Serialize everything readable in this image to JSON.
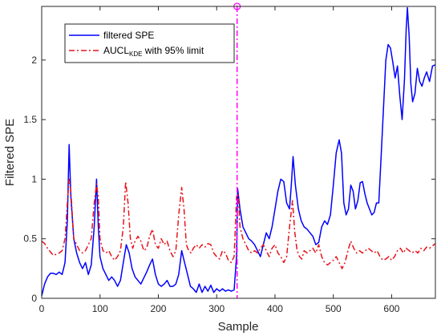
{
  "chart_data": {
    "type": "line",
    "xlabel": "Sample",
    "ylabel": "Filtered SPE",
    "xlim": [
      0,
      675
    ],
    "ylim": [
      0,
      2.45
    ],
    "xticks": [
      0,
      100,
      200,
      300,
      400,
      500,
      600
    ],
    "yticks": [
      0,
      0.5,
      1,
      1.5,
      2
    ],
    "ytick_labels": [
      "0",
      "0.5",
      "1",
      "1.5",
      "2"
    ],
    "grid": false,
    "legend": {
      "placement": "top-left",
      "entries": [
        {
          "main": "filtered SPE",
          "sub": "",
          "suffix": ""
        },
        {
          "main": "AUCL",
          "sub": "KDE",
          "suffix": " with 95% limit"
        }
      ]
    },
    "fault_marker": {
      "x": 335,
      "marker_y": 2.45,
      "color": "#ff00ff"
    },
    "series": [
      {
        "name": "filtered SPE",
        "color": "#0000ff",
        "style": "solid",
        "points": [
          [
            0,
            0.02
          ],
          [
            5,
            0.12
          ],
          [
            10,
            0.18
          ],
          [
            15,
            0.21
          ],
          [
            20,
            0.21
          ],
          [
            25,
            0.2
          ],
          [
            30,
            0.22
          ],
          [
            35,
            0.2
          ],
          [
            40,
            0.3
          ],
          [
            44,
            0.65
          ],
          [
            47,
            1.29
          ],
          [
            50,
            0.85
          ],
          [
            55,
            0.5
          ],
          [
            60,
            0.38
          ],
          [
            65,
            0.3
          ],
          [
            70,
            0.25
          ],
          [
            75,
            0.3
          ],
          [
            80,
            0.2
          ],
          [
            85,
            0.28
          ],
          [
            90,
            0.6
          ],
          [
            94,
            1.0
          ],
          [
            97,
            0.6
          ],
          [
            100,
            0.35
          ],
          [
            105,
            0.25
          ],
          [
            110,
            0.2
          ],
          [
            115,
            0.15
          ],
          [
            120,
            0.18
          ],
          [
            125,
            0.15
          ],
          [
            130,
            0.1
          ],
          [
            135,
            0.15
          ],
          [
            140,
            0.3
          ],
          [
            145,
            0.45
          ],
          [
            150,
            0.38
          ],
          [
            155,
            0.25
          ],
          [
            160,
            0.18
          ],
          [
            165,
            0.15
          ],
          [
            170,
            0.12
          ],
          [
            175,
            0.17
          ],
          [
            180,
            0.22
          ],
          [
            185,
            0.28
          ],
          [
            190,
            0.33
          ],
          [
            195,
            0.2
          ],
          [
            200,
            0.12
          ],
          [
            205,
            0.1
          ],
          [
            210,
            0.12
          ],
          [
            215,
            0.15
          ],
          [
            220,
            0.1
          ],
          [
            225,
            0.1
          ],
          [
            230,
            0.12
          ],
          [
            235,
            0.2
          ],
          [
            240,
            0.4
          ],
          [
            245,
            0.3
          ],
          [
            250,
            0.2
          ],
          [
            255,
            0.1
          ],
          [
            260,
            0.08
          ],
          [
            265,
            0.05
          ],
          [
            270,
            0.12
          ],
          [
            275,
            0.05
          ],
          [
            280,
            0.1
          ],
          [
            285,
            0.06
          ],
          [
            290,
            0.11
          ],
          [
            295,
            0.05
          ],
          [
            300,
            0.08
          ],
          [
            305,
            0.06
          ],
          [
            310,
            0.08
          ],
          [
            315,
            0.06
          ],
          [
            320,
            0.07
          ],
          [
            325,
            0.06
          ],
          [
            330,
            0.07
          ],
          [
            334,
            0.35
          ],
          [
            336,
            0.92
          ],
          [
            340,
            0.75
          ],
          [
            345,
            0.6
          ],
          [
            350,
            0.55
          ],
          [
            355,
            0.5
          ],
          [
            360,
            0.48
          ],
          [
            365,
            0.45
          ],
          [
            370,
            0.4
          ],
          [
            375,
            0.35
          ],
          [
            380,
            0.45
          ],
          [
            385,
            0.55
          ],
          [
            390,
            0.5
          ],
          [
            395,
            0.6
          ],
          [
            400,
            0.75
          ],
          [
            405,
            0.9
          ],
          [
            410,
            1.0
          ],
          [
            415,
            0.98
          ],
          [
            420,
            0.8
          ],
          [
            425,
            0.75
          ],
          [
            428,
            0.95
          ],
          [
            431,
            1.19
          ],
          [
            435,
            0.95
          ],
          [
            440,
            0.75
          ],
          [
            445,
            0.65
          ],
          [
            450,
            0.6
          ],
          [
            455,
            0.58
          ],
          [
            460,
            0.55
          ],
          [
            465,
            0.52
          ],
          [
            470,
            0.45
          ],
          [
            475,
            0.47
          ],
          [
            480,
            0.6
          ],
          [
            485,
            0.65
          ],
          [
            490,
            0.62
          ],
          [
            495,
            0.7
          ],
          [
            500,
            0.95
          ],
          [
            505,
            1.22
          ],
          [
            510,
            1.33
          ],
          [
            514,
            1.22
          ],
          [
            518,
            0.8
          ],
          [
            522,
            0.7
          ],
          [
            526,
            0.75
          ],
          [
            530,
            0.95
          ],
          [
            534,
            0.9
          ],
          [
            538,
            0.75
          ],
          [
            542,
            0.82
          ],
          [
            546,
            0.97
          ],
          [
            550,
            0.98
          ],
          [
            554,
            0.88
          ],
          [
            558,
            0.8
          ],
          [
            562,
            0.75
          ],
          [
            566,
            0.7
          ],
          [
            570,
            0.72
          ],
          [
            574,
            0.8
          ],
          [
            578,
            0.8
          ],
          [
            582,
            1.2
          ],
          [
            586,
            1.6
          ],
          [
            590,
            2.0
          ],
          [
            594,
            2.13
          ],
          [
            598,
            2.1
          ],
          [
            602,
            1.98
          ],
          [
            606,
            1.85
          ],
          [
            610,
            1.95
          ],
          [
            614,
            1.7
          ],
          [
            618,
            1.5
          ],
          [
            622,
            1.83
          ],
          [
            625,
            2.26
          ],
          [
            627,
            2.44
          ],
          [
            630,
            2.2
          ],
          [
            633,
            1.8
          ],
          [
            636,
            1.65
          ],
          [
            640,
            1.72
          ],
          [
            644,
            1.93
          ],
          [
            648,
            1.82
          ],
          [
            652,
            1.78
          ],
          [
            656,
            1.85
          ],
          [
            660,
            1.9
          ],
          [
            665,
            1.82
          ],
          [
            670,
            1.95
          ],
          [
            675,
            1.96
          ]
        ]
      },
      {
        "name": "AUCL_KDE with 95% limit",
        "color": "#e8141c",
        "style": "dashdot",
        "points": [
          [
            0,
            0.48
          ],
          [
            5,
            0.46
          ],
          [
            10,
            0.42
          ],
          [
            15,
            0.39
          ],
          [
            20,
            0.36
          ],
          [
            25,
            0.37
          ],
          [
            30,
            0.38
          ],
          [
            35,
            0.4
          ],
          [
            40,
            0.5
          ],
          [
            44,
            0.8
          ],
          [
            47,
            1.0
          ],
          [
            50,
            0.9
          ],
          [
            55,
            0.5
          ],
          [
            60,
            0.45
          ],
          [
            65,
            0.4
          ],
          [
            70,
            0.38
          ],
          [
            75,
            0.4
          ],
          [
            80,
            0.45
          ],
          [
            85,
            0.5
          ],
          [
            90,
            0.8
          ],
          [
            94,
            0.96
          ],
          [
            97,
            0.85
          ],
          [
            100,
            0.5
          ],
          [
            105,
            0.4
          ],
          [
            110,
            0.38
          ],
          [
            115,
            0.4
          ],
          [
            120,
            0.35
          ],
          [
            125,
            0.32
          ],
          [
            130,
            0.35
          ],
          [
            135,
            0.4
          ],
          [
            140,
            0.6
          ],
          [
            144,
            0.98
          ],
          [
            148,
            0.8
          ],
          [
            152,
            0.5
          ],
          [
            156,
            0.42
          ],
          [
            160,
            0.48
          ],
          [
            165,
            0.52
          ],
          [
            170,
            0.48
          ],
          [
            175,
            0.4
          ],
          [
            180,
            0.42
          ],
          [
            185,
            0.52
          ],
          [
            190,
            0.58
          ],
          [
            195,
            0.45
          ],
          [
            200,
            0.42
          ],
          [
            205,
            0.5
          ],
          [
            210,
            0.45
          ],
          [
            215,
            0.48
          ],
          [
            220,
            0.4
          ],
          [
            225,
            0.35
          ],
          [
            230,
            0.4
          ],
          [
            235,
            0.7
          ],
          [
            240,
            0.93
          ],
          [
            244,
            0.75
          ],
          [
            248,
            0.45
          ],
          [
            252,
            0.4
          ],
          [
            256,
            0.38
          ],
          [
            260,
            0.42
          ],
          [
            265,
            0.45
          ],
          [
            270,
            0.42
          ],
          [
            275,
            0.45
          ],
          [
            280,
            0.43
          ],
          [
            285,
            0.46
          ],
          [
            290,
            0.45
          ],
          [
            295,
            0.38
          ],
          [
            300,
            0.35
          ],
          [
            305,
            0.33
          ],
          [
            310,
            0.4
          ],
          [
            315,
            0.38
          ],
          [
            320,
            0.32
          ],
          [
            325,
            0.3
          ],
          [
            330,
            0.35
          ],
          [
            334,
            0.85
          ],
          [
            337,
            0.88
          ],
          [
            340,
            0.6
          ],
          [
            345,
            0.5
          ],
          [
            350,
            0.45
          ],
          [
            355,
            0.4
          ],
          [
            360,
            0.38
          ],
          [
            365,
            0.4
          ],
          [
            370,
            0.38
          ],
          [
            375,
            0.42
          ],
          [
            380,
            0.45
          ],
          [
            385,
            0.4
          ],
          [
            390,
            0.35
          ],
          [
            395,
            0.42
          ],
          [
            400,
            0.45
          ],
          [
            405,
            0.38
          ],
          [
            410,
            0.35
          ],
          [
            415,
            0.3
          ],
          [
            420,
            0.35
          ],
          [
            425,
            0.6
          ],
          [
            430,
            0.82
          ],
          [
            434,
            0.55
          ],
          [
            438,
            0.4
          ],
          [
            442,
            0.35
          ],
          [
            446,
            0.33
          ],
          [
            450,
            0.4
          ],
          [
            455,
            0.38
          ],
          [
            460,
            0.4
          ],
          [
            465,
            0.42
          ],
          [
            470,
            0.38
          ],
          [
            475,
            0.45
          ],
          [
            480,
            0.35
          ],
          [
            485,
            0.3
          ],
          [
            490,
            0.28
          ],
          [
            495,
            0.3
          ],
          [
            500,
            0.32
          ],
          [
            505,
            0.35
          ],
          [
            510,
            0.3
          ],
          [
            515,
            0.25
          ],
          [
            520,
            0.3
          ],
          [
            525,
            0.4
          ],
          [
            530,
            0.48
          ],
          [
            535,
            0.42
          ],
          [
            540,
            0.38
          ],
          [
            545,
            0.4
          ],
          [
            550,
            0.38
          ],
          [
            555,
            0.4
          ],
          [
            560,
            0.42
          ],
          [
            565,
            0.4
          ],
          [
            570,
            0.38
          ],
          [
            575,
            0.4
          ],
          [
            580,
            0.35
          ],
          [
            585,
            0.32
          ],
          [
            590,
            0.33
          ],
          [
            595,
            0.35
          ],
          [
            600,
            0.32
          ],
          [
            605,
            0.35
          ],
          [
            610,
            0.4
          ],
          [
            615,
            0.42
          ],
          [
            620,
            0.38
          ],
          [
            625,
            0.42
          ],
          [
            630,
            0.4
          ],
          [
            635,
            0.38
          ],
          [
            640,
            0.4
          ],
          [
            645,
            0.38
          ],
          [
            650,
            0.42
          ],
          [
            655,
            0.4
          ],
          [
            660,
            0.43
          ],
          [
            665,
            0.42
          ],
          [
            670,
            0.44
          ],
          [
            675,
            0.46
          ]
        ]
      }
    ]
  }
}
